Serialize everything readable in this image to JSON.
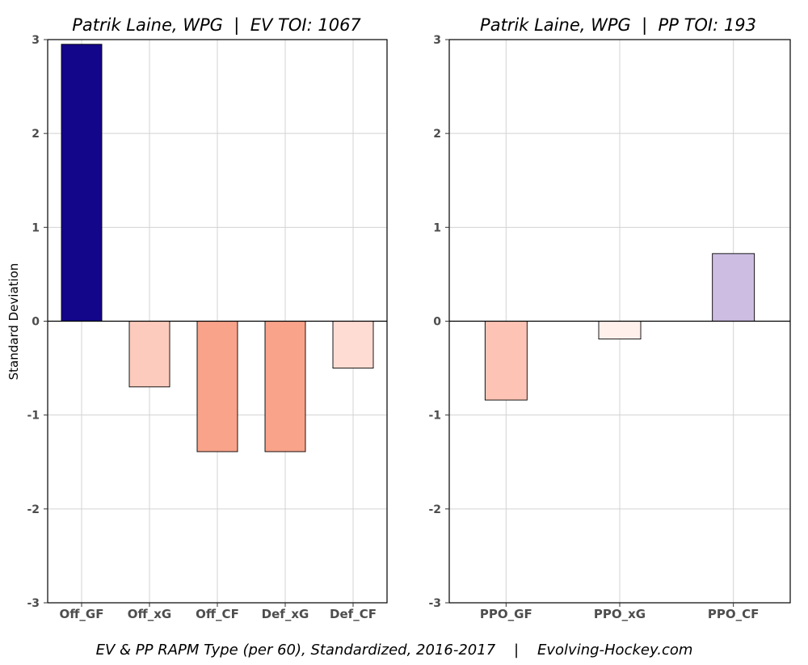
{
  "chart_data": [
    {
      "type": "bar",
      "title": "Patrik Laine, WPG  |  EV TOI: 1067",
      "ylabel": "Standard Deviation",
      "xlabel": "",
      "ylim": [
        -3,
        3
      ],
      "yticks": [
        3,
        2,
        1,
        0,
        -1,
        -2,
        -3
      ],
      "grid": true,
      "categories": [
        "Off_GF",
        "Off_xG",
        "Off_CF",
        "Def_xG",
        "Def_CF"
      ],
      "values": [
        2.95,
        -0.7,
        -1.39,
        -1.39,
        -0.5
      ],
      "colors": [
        "#13068a",
        "#fdcbbd",
        "#f8a38a",
        "#f8a38a",
        "#fedcd3"
      ]
    },
    {
      "type": "bar",
      "title": "Patrik Laine, WPG  |  PP TOI: 193",
      "ylabel": "",
      "xlabel": "",
      "ylim": [
        -3,
        3
      ],
      "yticks": [
        3,
        2,
        1,
        0,
        -1,
        -2,
        -3
      ],
      "grid": true,
      "categories": [
        "PPO_GF",
        "PPO_xG",
        "PPO_CF"
      ],
      "values": [
        -0.84,
        -0.19,
        0.72
      ],
      "colors": [
        "#fdc4b6",
        "#fff0ec",
        "#cdbde2"
      ]
    }
  ],
  "caption": "EV & PP RAPM Type (per 60), Standardized, 2016-2017    |    Evolving-Hockey.com"
}
